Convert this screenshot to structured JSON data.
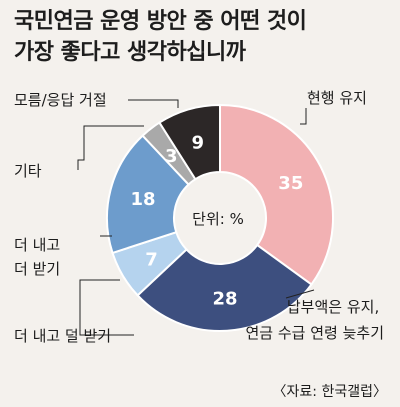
{
  "title_lines": [
    "국민연금 운영 방안 중 어떤 것이",
    "가장 좋다고 생각하십니까"
  ],
  "unit_label": "단위: %",
  "source": "〈자료: 한국갤럽〉",
  "chart_data": {
    "type": "pie",
    "variant": "donut",
    "title": "국민연금 운영 방안 중 어떤 것이 가장 좋다고 생각하십니까",
    "unit": "%",
    "slices": [
      {
        "label_lines": [
          "현행 유지"
        ],
        "value": 35,
        "color": "#f2b1b3",
        "value_color": "#ffffff"
      },
      {
        "label_lines": [
          "납부액은 유지,",
          "연금 수급 연령 늦추기"
        ],
        "value": 28,
        "color": "#3d4f7f",
        "value_color": "#ffffff"
      },
      {
        "label_lines": [
          "더 내고 덜 받기"
        ],
        "value": 7,
        "color": "#b5d3ee",
        "value_color": "#ffffff"
      },
      {
        "label_lines": [
          "더 내고",
          "더 받기"
        ],
        "value": 18,
        "color": "#6d9ccc",
        "value_color": "#ffffff"
      },
      {
        "label_lines": [
          "기타"
        ],
        "value": 3,
        "color": "#a9a9a9",
        "value_color": "#ffffff"
      },
      {
        "label_lines": [
          "모름/응답 거절"
        ],
        "value": 9,
        "color": "#2c2727",
        "value_color": "#ffffff"
      }
    ]
  }
}
